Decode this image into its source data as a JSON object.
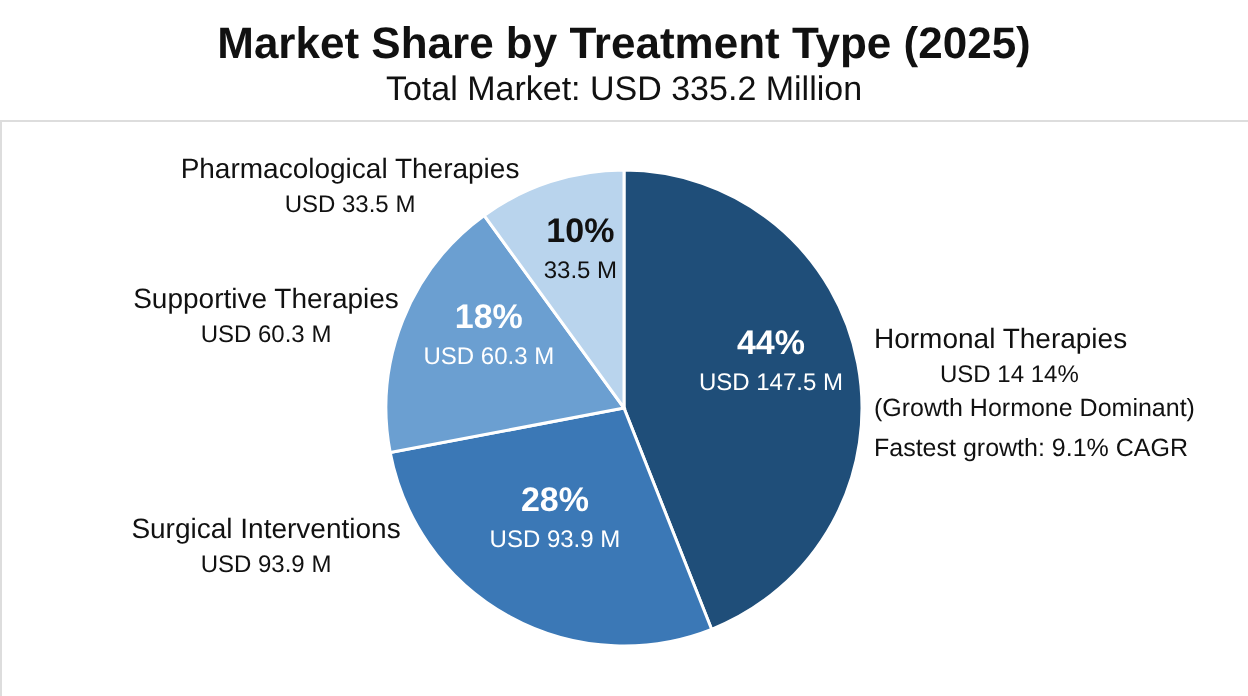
{
  "chart_data": {
    "type": "pie",
    "title": "Market Share by Treatment Type (2025)",
    "subtitle": "Total Market: USD 335.2 Million",
    "categories": [
      "Hormonal Therapies",
      "Surgical Interventions",
      "Supportive Therapies",
      "Pharmacological Therapies"
    ],
    "values": [
      44,
      28,
      18,
      10
    ],
    "colors": [
      "#1f4e79",
      "#3b78b6",
      "#6b9fd1",
      "#b9d4ed"
    ],
    "value_labels": [
      "44%",
      "28%",
      "18%",
      "10%"
    ],
    "annotations": [
      "USD 147.5 M",
      "USD 93.9 M",
      "USD 60.3 M",
      "33.5 M",
      "USD 14 14%",
      "USD 93.9 M",
      "USD 60.3 M",
      "USD 33.5 M",
      "(Growth Hormone Dominant)",
      "Fastest growth: 9.1% CAGR"
    ]
  }
}
